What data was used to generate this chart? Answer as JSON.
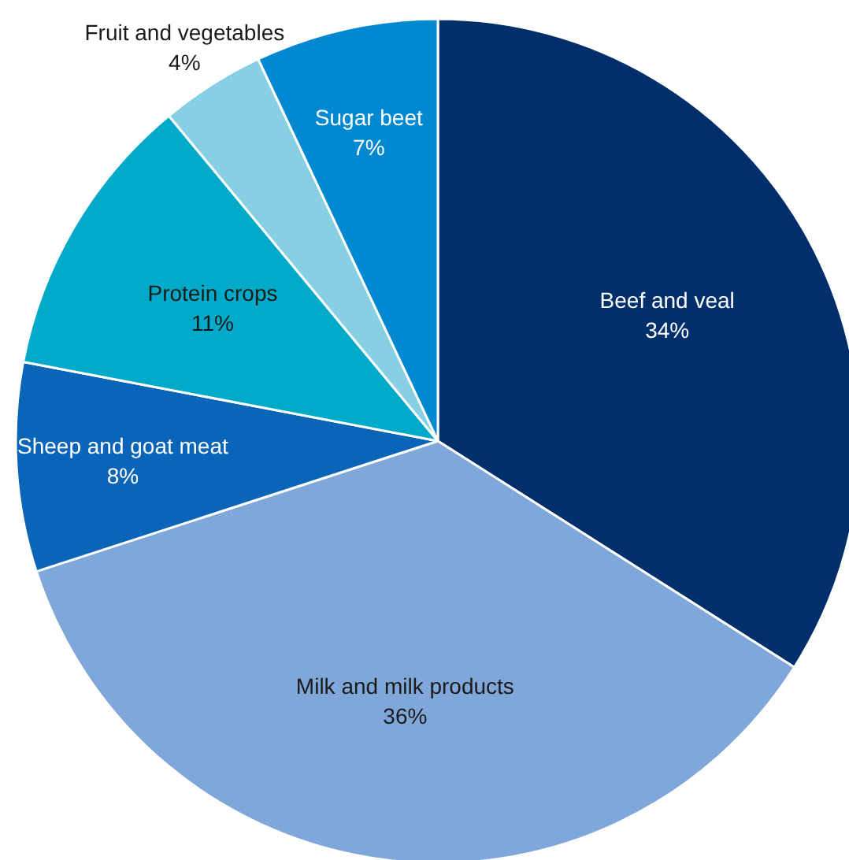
{
  "chart_data": {
    "type": "pie",
    "categories": [
      "Beef and veal",
      "Milk and milk products",
      "Sheep and goat meat",
      "Protein crops",
      "Fruit and vegetables",
      "Sugar beet"
    ],
    "values": [
      34,
      36,
      8,
      11,
      4,
      7
    ],
    "colors": [
      "#002f6c",
      "#7fa7d9",
      "#0a65b8",
      "#00aac8",
      "#87d0e3",
      "#0088d1"
    ],
    "value_labels": [
      "34%",
      "36%",
      "8%",
      "11%",
      "4%",
      "7%"
    ],
    "legend": false
  }
}
